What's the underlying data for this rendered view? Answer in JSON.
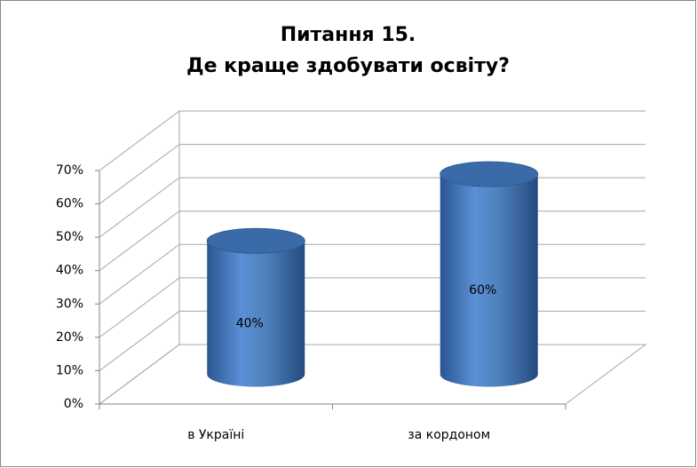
{
  "chart_data": {
    "type": "bar3d",
    "title": "Питання 15.",
    "subtitle": "Де краще здобувати освіту?",
    "categories": [
      "в Україні",
      "за кордоном"
    ],
    "values": [
      40,
      60
    ],
    "value_labels": [
      "40%",
      "60%"
    ],
    "color": "#4f81bd",
    "ylim": [
      0,
      70
    ],
    "yticks": [
      {
        "value": 0,
        "label": "0%"
      },
      {
        "value": 10,
        "label": "10%"
      },
      {
        "value": 20,
        "label": "20%"
      },
      {
        "value": 30,
        "label": "30%"
      },
      {
        "value": 40,
        "label": "40%"
      },
      {
        "value": 50,
        "label": "50%"
      },
      {
        "value": 60,
        "label": "60%"
      },
      {
        "value": 70,
        "label": "70%"
      }
    ],
    "grid": true
  }
}
